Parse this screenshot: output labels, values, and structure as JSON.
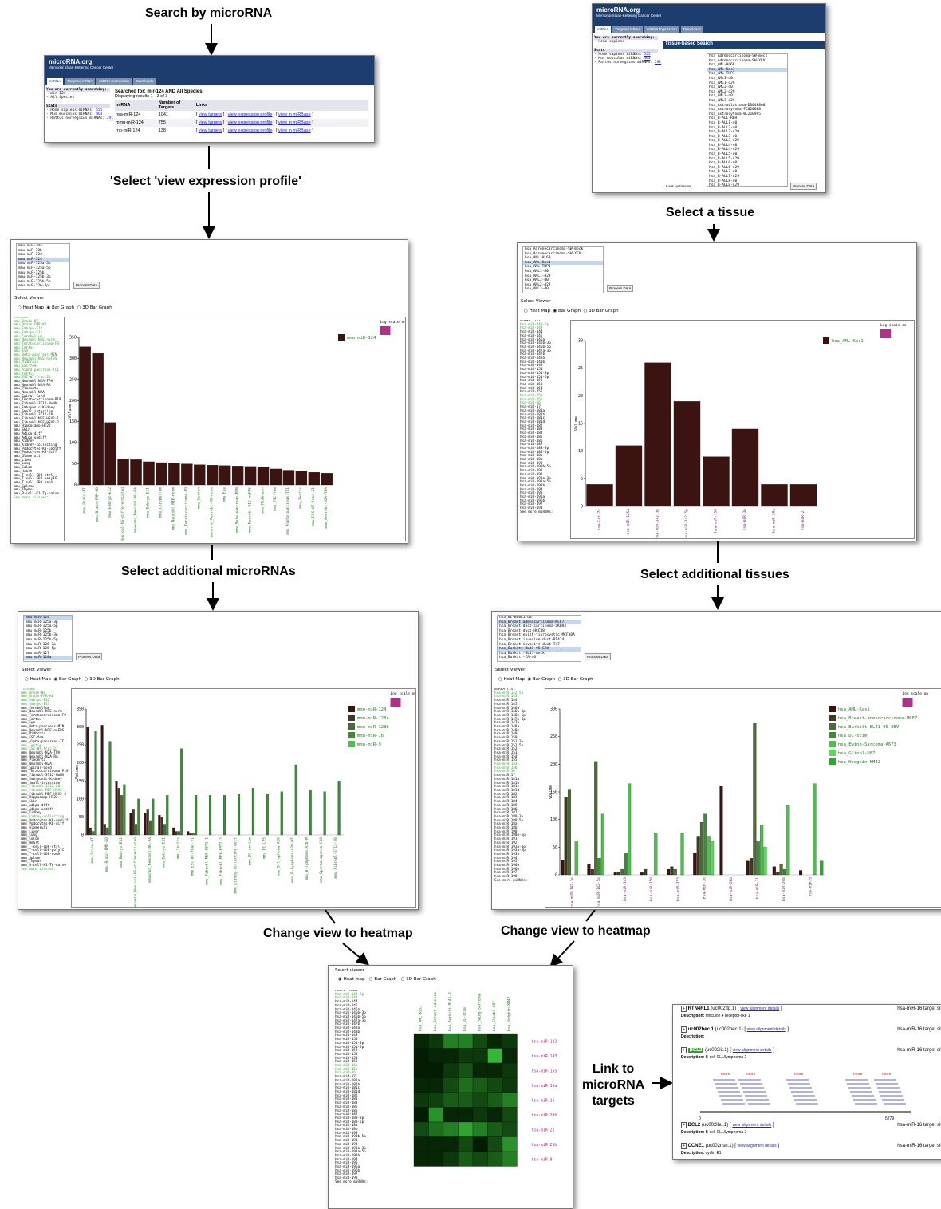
{
  "labels": {
    "search_by_mirna": "Search by microRNA",
    "select_view_expression": "'Select 'view expression profile'",
    "select_a_tissue": "Select a tissue",
    "select_additional_mirnas": "Select additional microRNAs",
    "select_additional_tissues": "Select additional tissues",
    "change_view_left": "Change view to heatmap",
    "change_view_right": "Change view to heatmap",
    "link_to_targets": "Link to\nmicroRNA\ntargets"
  },
  "site": {
    "title": "microRNA.org",
    "subtitle": "Memorial Sloan-Kettering Cancer Center",
    "tabs": [
      "miRNA",
      "Targeted mRNA",
      "miRNA Expression",
      "Downloads"
    ]
  },
  "search_panel": {
    "searching_title": "You are currently searching:",
    "searching_items": [
      "mir-124",
      "All Species"
    ],
    "stats_title": "Stats",
    "stats": [
      {
        "label": "Homo sapiens miRNAs:",
        "value": "555"
      },
      {
        "label": "Mus musculus miRNAs:",
        "value": "463"
      },
      {
        "label": "Rattus norvegicus miRNAs:",
        "value": "291"
      }
    ],
    "results_title": "Searched for: mir-124 AND All Species",
    "results_range": "Displaying results 1 - 3 of 3",
    "columns": [
      "miRNA",
      "Number of Targets",
      "Links"
    ],
    "rows": [
      {
        "mirna": "hsa-miR-124",
        "targets": "1041"
      },
      {
        "mirna": "mmu-miR-124",
        "targets": "755"
      },
      {
        "mirna": "rno-miR-124",
        "targets": "138"
      }
    ],
    "links": [
      "view targets",
      "view expression profile",
      "view in miRBase"
    ]
  },
  "tissue_panel": {
    "searching_title": "You are currently searching:",
    "searching_items": [
      "Homo sapiens"
    ],
    "box_title": "Tissue-based Search",
    "tissues": [
      "hsa_Adrenocarcinoma-SW-mock",
      "hsa_Adrenocarcinoma-SW-YFV",
      "hsa_AML-HL60",
      "hsa_AML-Kas1",
      "hsa_AML-THP1",
      "hsa_AML1-d0",
      "hsa_AML1-d29",
      "hsa_AML2-d0",
      "hsa_AML2-d29",
      "hsa_AML3-d0",
      "hsa_AML3-d29",
      "hsa_Astroblastoma-DD040800",
      "hsa_Astrocytoma-FC020688",
      "hsa_Astrocytoma-WL210995",
      "hsa_B-ALL-REH",
      "hsa_B-ALL1-d0",
      "hsa_B-ALL2-d0",
      "hsa_B-ALL2-d29",
      "hsa_B-ALL3-d0",
      "hsa_B-ALL3-d29",
      "hsa_B-ALL4-d0",
      "hsa_B-ALL4-d29",
      "hsa_B-ALL5-d0",
      "hsa_B-ALL5-d29",
      "hsa_B-ALL6-d0",
      "hsa_B-ALL6-d29",
      "hsa_B-ALL7-d0",
      "hsa_B-ALL7-d29",
      "hsa_B-ALL8-d0",
      "hsa_B-ALL8-d29"
    ],
    "lookup": "Look up tissues",
    "process": "Process Data"
  },
  "viewer": {
    "select_viewer": "Select Viewer",
    "heat_map": "Heat Map",
    "bar_graph": "Bar Graph",
    "bar3d": "3D Bar Graph",
    "process": "Process Data",
    "log_scale": "Log scale on",
    "volume": "Volume"
  },
  "heat_viewer": {
    "select_viewer": "Select viewer",
    "heat_map": "Heat map",
    "bar_graph": "Bar Graph",
    "bar3d": "3D Bar Graph"
  },
  "mmu_select1": [
    "mmu-miR-10a",
    "mmu-miR-10b",
    "mmu-miR-122",
    "mmu-miR-124",
    "mmu-miR-125a-3p",
    "mmu-miR-125a-5p",
    "mmu-miR-125b",
    "mmu-miR-125b-3p",
    "mmu-miR-125b-5p",
    "mmu-miR-126-3p"
  ],
  "mmu_select2": [
    "mmu-miR-124",
    "mmu-miR-125a-3p",
    "mmu-miR-125a-5p",
    "mmu-miR-125b",
    "mmu-miR-125b-3p",
    "mmu-miR-125b-5p",
    "mmu-miR-126-3p",
    "mmu-miR-126-5p",
    "mmu-miR-127",
    "mmu-miR-128a"
  ],
  "hsa_select1": [
    "hsa_Adrenocarcinoma-SW-mock",
    "hsa_Adrenocarcinoma-SW-YFV",
    "hsa_AML-HL60",
    "hsa_AML-Kas1",
    "hsa_AML-THP1",
    "hsa_AML1-d0",
    "hsa_AML1-d29",
    "hsa_AML2-d0",
    "hsa_AML2-d29",
    "hsa_AML3-d0"
  ],
  "hsa_select2": [
    "hsa_BL-BCBL1-d0",
    "hsa_Breast-adenocarcinoma-MCF7",
    "hsa_Breast-duct-carcinoma-SKBR3",
    "hsa_Breast-duct-HCC38",
    "hsa_Breast-epith-fibrocystic-MCF10A",
    "hsa_Breast-invasive-duct-BT474",
    "hsa_Breast-invasive-duct-T47",
    "hsa_Burkitt-BL41-95-EBV",
    "hsa_Burkitt-BL41-mock",
    "hsa_Burkitt-CA-46"
  ],
  "mmu_tissues": [
    "Tissues",
    "mmu_Brain-NT",
    "mmu_Brain-FMR-KO",
    "mmu_Embryo-E12",
    "mmu_Embryo-E11",
    "mmu_Cerebellum",
    "mmu_Neurobl-N1E-norm",
    "mmu_Teratocarcinoma-F9",
    "mmu_Cortex",
    "mmu_Eye",
    "mmu_Beta-pancreas-MIN",
    "mmu_Neurobl-N1E-noFBS",
    "mmu_Midbrain",
    "mmu_ESC-fem",
    "mmu_Alpha-pancreas-TC1",
    "mmu_Testis",
    "mmu_ESC-WT-frac-21",
    "mmu_Neurobl-N2A-TPA",
    "mmu_Neurobl-N2A-RA",
    "mmu_Placenta",
    "mmu_Neurobl-N2A",
    "mmu_Spinal-Cord",
    "mmu_Teratocarcinoma-P19",
    "mmu_Fibrobl-3T12-MuNV",
    "mmu_Embryonic-Kidney",
    "mmu_Small-intestine",
    "mmu_Fibrobl-3T12-20",
    "mmu_Fibrobl-MEF-HSV2-1",
    "mmu_Fibrobl-MEF-HSV2-2",
    "mmu_Hippocamp-HT22",
    "mmu_Skin",
    "mmu_Adipo-diff",
    "mmu_Adipo-undiff",
    "mmu_Kidney",
    "mmu_Kidney-collecting",
    "mmu_Podocytes-K8-undiff",
    "mmu_Podocytes-K8-diff",
    "mmu_Glomeruli",
    "mmu_Liver",
    "mmu_Lung",
    "mmu_Colon",
    "mmu_Heart",
    "mmu_T-cell-CD8-ctrl",
    "mmu_T-cell-CD8-polyIC",
    "mmu_T-cell-CD8-conA",
    "mmu_Spleen",
    "mmu_Thymus",
    "mmu_B-cell-K1-Tg-naive",
    "See more tissues:"
  ],
  "hsa_mirnas": [
    "miRNA list",
    "hsa-miR-142-5p",
    "hsa-miR-143",
    "hsa-miR-144",
    "hsa-miR-145",
    "hsa-miR-146a",
    "hsa-miR-146b-3p",
    "hsa-miR-146b-5p",
    "hsa-miR-147a-3p",
    "hsa-miR-147b",
    "hsa-miR-148a",
    "hsa-miR-148b",
    "hsa-miR-149",
    "hsa-miR-150",
    "hsa-miR-151-3p",
    "hsa-miR-151-5p",
    "hsa-miR-152",
    "hsa-miR-153",
    "hsa-miR-154",
    "hsa-miR-155",
    "hsa-miR-15a",
    "hsa-miR-15b",
    "hsa-miR-16",
    "hsa-miR-17",
    "hsa-miR-181a",
    "hsa-miR-181b",
    "hsa-miR-181c",
    "hsa-miR-181d",
    "hsa-miR-182",
    "hsa-miR-183",
    "hsa-miR-184",
    "hsa-miR-185",
    "hsa-miR-186",
    "hsa-miR-187",
    "hsa-miR-188-3p",
    "hsa-miR-188-5p",
    "hsa-miR-18a",
    "hsa-miR-18b",
    "hsa-miR-190",
    "hsa-miR-190b-5p",
    "hsa-miR-191",
    "hsa-miR-192",
    "hsa-miR-193a-3p",
    "hsa-miR-193a-5p",
    "hsa-miR-193b",
    "hsa-miR-194",
    "hsa-miR-195",
    "hsa-miR-196a",
    "hsa-miR-196b",
    "hsa-miR-197",
    "hsa-miR-198",
    "See more miRNAs:"
  ],
  "chart1": {
    "legend": [
      "mmu-miR-124"
    ],
    "ylim": [
      0,
      350
    ],
    "categories": [
      "mmu_Brain-NT",
      "mmu_Brain-FMR-KO",
      "mmu_Embryo-E12",
      "mmuxrno_Neurobl-NG-differentiated",
      "mmuxrno_Neurobl-NG-RA",
      "mmu_Embryo-E11",
      "mmu_Cerebellum",
      "mmu_Neurobl-N1E-norm",
      "mmu_Teratocarcinoma-F9",
      "mmu_Cortex",
      "mmuxrno_Neurobl-NG-norm",
      "mmu_Eye",
      "mmu_Beta-pancreas-MIN",
      "mmu_Neurobl-N1E-noFBS",
      "mmu_Midbrain",
      "mmu_ESC-fem",
      "mmu_Alpha-pancreas-TC1",
      "mmu_Testis",
      "mmu_ESC-WT-frac-21",
      "mmu_Neurobl-N2A-TPA"
    ],
    "values": [
      328,
      312,
      148,
      62,
      60,
      55,
      53,
      52,
      50,
      48,
      47,
      46,
      45,
      44,
      43,
      38,
      35,
      33,
      30,
      28
    ]
  },
  "chart2": {
    "legend": [
      "hsa_AML-Kas1"
    ],
    "ylim": [
      0,
      30
    ],
    "categories": [
      "hsa-let-7c",
      "hsa-miR-125a",
      "hsa-miR-142-3p",
      "hsa-miR-142-5p",
      "hsa-miR-150",
      "hsa-miR-16",
      "hsa-miR-20a",
      "hsa-miR-21"
    ],
    "values": [
      4,
      11,
      26,
      19,
      9,
      14,
      4,
      4
    ]
  },
  "chart3": {
    "legend": [
      "mmu-miR-124",
      "mmu-miR-128a",
      "mmu-miR-128b",
      "mmu-miR-16",
      "mmu-miR-9"
    ],
    "ylim": [
      0,
      350
    ],
    "categories": [
      "mmu_Brain-NT",
      "mmu_Brain-FMR-KO",
      "mmu_Embryo-E12",
      "mmuxrno_Neurobl-NG-differentiated",
      "mmuxrno_Neurobl-NG-RA",
      "mmu_Embryo-E11",
      "mmu_Testis",
      "mmu_ESC-WT-frac-21",
      "mmu_Fibrobl-MEF-HSV2-1",
      "mmu_Fibrobl-MEF-HSV2-2",
      "mmu_Kidney-collecting-duct",
      "mmu_DC-unstim",
      "mmu_DC-LPS",
      "mmu_B-lymphoma-A20",
      "mmu_B-lymphoma-A20-WT",
      "mmu_B-lymphoma-A20-M",
      "mmu_Spermatogonia-C18",
      "mmu_Fibrobl-3T12-20"
    ],
    "series": [
      [
        300,
        305,
        150,
        60,
        60,
        55,
        20,
        10,
        0,
        0,
        0,
        0,
        0,
        0,
        0,
        0,
        0,
        0
      ],
      [
        20,
        30,
        130,
        70,
        70,
        50,
        10,
        5,
        0,
        0,
        0,
        0,
        0,
        0,
        0,
        0,
        0,
        0
      ],
      [
        10,
        20,
        110,
        30,
        40,
        30,
        10,
        5,
        0,
        0,
        0,
        0,
        0,
        0,
        0,
        0,
        0,
        0
      ],
      [
        290,
        260,
        140,
        100,
        100,
        110,
        240,
        110,
        110,
        110,
        115,
        130,
        115,
        120,
        195,
        125,
        120,
        150
      ],
      [
        0,
        0,
        0,
        0,
        0,
        0,
        0,
        0,
        0,
        0,
        0,
        0,
        0,
        0,
        0,
        0,
        0,
        0
      ]
    ]
  },
  "chart4": {
    "legend": [
      "hsa_AML-Kas1",
      "hsa_Breast-adenocarcinoma-MCF7",
      "hsa_Burkitt-BL41-95-EBV",
      "hsa_DC-stim",
      "hsa_Ewing-Sarcoma-A673",
      "hsa_Gliobl-U87",
      "hsa_Hodgkin-KM42"
    ],
    "ylim": [
      0,
      300
    ],
    "categories": [
      "hsa-miR-142-3p",
      "hsa-miR-142-5p",
      "hsa-miR-143",
      "hsa-miR-150",
      "hsa-miR-155",
      "hsa-miR-16",
      "hsa-miR-20b",
      "hsa-miR-21",
      "hsa-miR-29b",
      "hsa-miR-9"
    ],
    "series": [
      [
        26,
        20,
        4,
        4,
        10,
        40,
        160,
        25,
        15,
        8
      ],
      [
        140,
        10,
        5,
        10,
        15,
        70,
        0,
        30,
        5,
        0
      ],
      [
        155,
        205,
        10,
        0,
        10,
        95,
        0,
        275,
        20,
        0
      ],
      [
        0,
        30,
        40,
        0,
        0,
        110,
        0,
        60,
        10,
        0
      ],
      [
        60,
        110,
        165,
        75,
        75,
        70,
        0,
        90,
        125,
        165
      ],
      [
        0,
        0,
        0,
        0,
        0,
        60,
        0,
        50,
        0,
        0
      ],
      [
        0,
        0,
        0,
        0,
        0,
        0,
        0,
        0,
        0,
        25
      ]
    ]
  },
  "heatmap": {
    "columns": [
      "hsa_AML-Kas1",
      "hsa_Breast-adenoca",
      "hsa_Burkitt-BL41-9",
      "hsa_DC-stim",
      "hsa_Ewing-Sarcoma-",
      "hsa_Gliobl-U87",
      "hsa_Hodgkin-KM42"
    ],
    "rows": [
      "hsa-miR-142",
      "hsa-miR-143",
      "hsa-miR-155",
      "hsa-miR-15a",
      "hsa-miR-16",
      "hsa-miR-20b",
      "hsa-miR-21",
      "hsa-miR-29b",
      "hsa-miR-9"
    ],
    "values": [
      [
        0.1,
        0.2,
        0.6,
        0.6,
        0.3,
        0.1,
        0.2
      ],
      [
        0.05,
        0.1,
        0.1,
        0.2,
        0.2,
        0.9,
        0.1
      ],
      [
        0.05,
        0.05,
        0.2,
        0.35,
        0.1,
        0.1,
        0.2
      ],
      [
        0.1,
        0.1,
        0.3,
        0.5,
        0.4,
        0.3,
        0.2
      ],
      [
        0.2,
        0.25,
        0.4,
        0.4,
        0.3,
        0.4,
        0.6
      ],
      [
        0.05,
        0.7,
        0.1,
        0.1,
        0.2,
        0.1,
        0.3
      ],
      [
        0.3,
        0.5,
        0.6,
        0.8,
        0.6,
        0.4,
        0.3
      ],
      [
        0.1,
        0.1,
        0.1,
        0.3,
        0.05,
        0.3,
        0.7
      ],
      [
        0.1,
        0.1,
        0.2,
        0.4,
        0.3,
        0.4,
        0.6
      ]
    ],
    "mirna_list": [
      "Micro rnMas",
      "hsa-miR-142-5p",
      "hsa-miR-143",
      "hsa-miR-144",
      "hsa-miR-145",
      "hsa-miR-146a",
      "hsa-miR-146b-3p",
      "hsa-miR-146b-5p",
      "hsa-miR-147a-3p",
      "hsa-miR-147b",
      "hsa-miR-148a",
      "hsa-miR-148b",
      "hsa-miR-149",
      "hsa-miR-150",
      "hsa-miR-151-3p",
      "hsa-miR-151-5p",
      "hsa-miR-152",
      "hsa-miR-153",
      "hsa-miR-154",
      "hsa-miR-155",
      "hsa-miR-15a",
      "hsa-miR-15b",
      "hsa-miR-16",
      "hsa-miR-17",
      "hsa-miR-181a",
      "hsa-miR-181b",
      "hsa-miR-181c",
      "hsa-miR-181d",
      "hsa-miR-182",
      "hsa-miR-183",
      "hsa-miR-184",
      "hsa-miR-185",
      "hsa-miR-186",
      "hsa-miR-187",
      "hsa-miR-188-3p",
      "hsa-miR-188-5p",
      "hsa-miR-18a",
      "hsa-miR-18b",
      "hsa-miR-190",
      "hsa-miR-190b-5p",
      "hsa-miR-191",
      "hsa-miR-192",
      "hsa-miR-193a-3p",
      "hsa-miR-193a-5p",
      "hsa-miR-193b",
      "hsa-miR-194",
      "hsa-miR-195",
      "hsa-miR-196a",
      "hsa-miR-196b",
      "hsa-miR-197",
      "hsa-miR-198",
      "See more miRNAs:"
    ]
  },
  "targets": {
    "site_label": "hsa-miR-16 target sites:",
    "view_alignment": "view alignment details",
    "description": "Description:",
    "entries": [
      {
        "gene": "RTN4RL1",
        "id": "(uc002ftp.1)",
        "desc": "reticulon 4 receptor-like 1"
      },
      {
        "gene": "uc002hec.1",
        "id": "(uc002hec.1)",
        "desc": ""
      },
      {
        "gene": "BCL2",
        "id": "(uc002lit.1)",
        "desc": "B-cell CLL/lymphoma 2"
      },
      {
        "gene": "BCL2",
        "id": "(uc002lhu.1)",
        "desc": "B-cell CLL/lymphoma 2"
      },
      {
        "gene": "CCNE1",
        "id": "(uc002nsn.1)",
        "desc": "cyclin E1"
      }
    ],
    "axis_start": "0",
    "axis_end": "5279",
    "more": "more"
  }
}
